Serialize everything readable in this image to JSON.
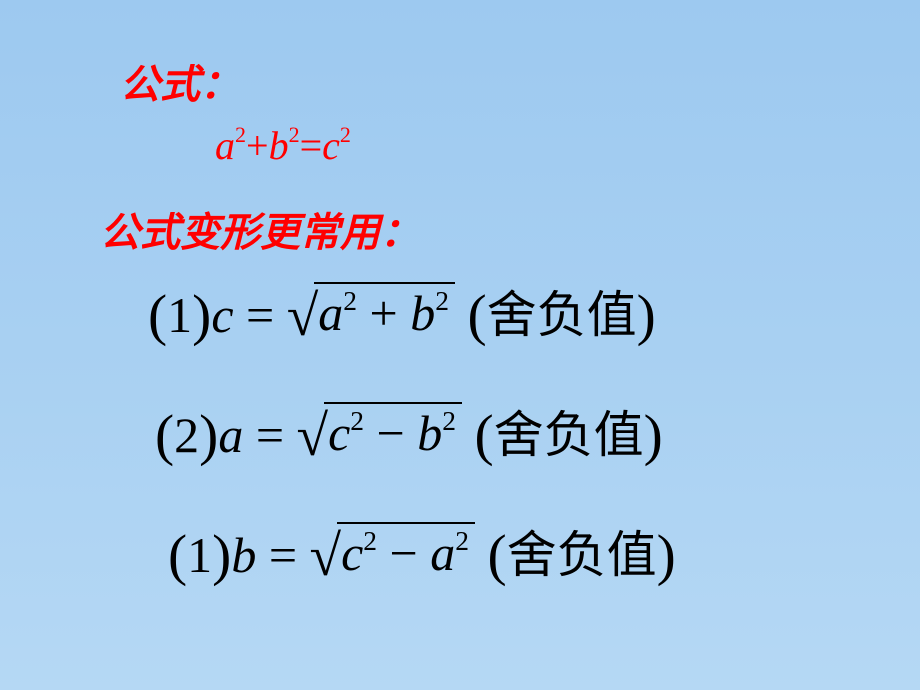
{
  "background": {
    "gradient_start": "#9dc9f0",
    "gradient_end": "#b5d8f4"
  },
  "colors": {
    "red": "#ff0000",
    "black": "#000000"
  },
  "typography": {
    "title_fontsize": 40,
    "equation_fontsize": 50,
    "title_font": "KaiTi",
    "equation_font": "Times New Roman"
  },
  "title1": "公式：",
  "formula_main": {
    "a": "a",
    "sup1": "2",
    "plus": "+",
    "b": "b",
    "sup2": "2",
    "eq": "=",
    "c": "c",
    "sup3": "2"
  },
  "title2": "公式变形更常用：",
  "equations": [
    {
      "num": "1",
      "lhs": "c",
      "radicand_t1": "a",
      "radicand_e1": "2",
      "radicand_op": "+",
      "radicand_t2": "b",
      "radicand_e2": "2",
      "note": "舍负值"
    },
    {
      "num": "2",
      "lhs": "a",
      "radicand_t1": "c",
      "radicand_e1": "2",
      "radicand_op": "−",
      "radicand_t2": "b",
      "radicand_e2": "2",
      "note": "舍负值"
    },
    {
      "num": "1",
      "lhs": "b",
      "radicand_t1": "c",
      "radicand_e1": "2",
      "radicand_op": "−",
      "radicand_t2": "a",
      "radicand_e2": "2",
      "note": "舍负值"
    }
  ]
}
